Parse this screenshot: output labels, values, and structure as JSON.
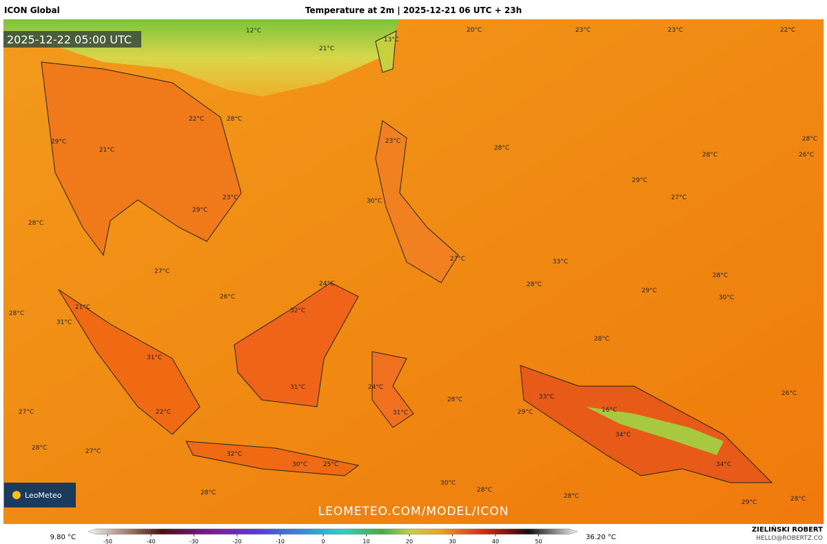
{
  "header": {
    "model": "ICON Global",
    "title": "Temperature at 2m | 2025-12-21 06 UTC + 23h",
    "valid_time": "2025-12-22 05:00 UTC"
  },
  "map": {
    "labels": [
      "12°C",
      "21°C",
      "13°C",
      "20°C",
      "23°C",
      "23°C",
      "22°C",
      "22°C",
      "28°C",
      "29°C",
      "21°C",
      "23°C",
      "28°C",
      "28°C",
      "26°C",
      "28°C",
      "29°C",
      "23°C",
      "30°C",
      "27°C",
      "28°C",
      "29°C",
      "27°C",
      "33°C",
      "27°C",
      "28°C",
      "28°C",
      "29°C",
      "30°C",
      "26°C",
      "24°C",
      "21°C",
      "28°C",
      "31°C",
      "32°C",
      "28°C",
      "31°C",
      "24°C",
      "31°C",
      "33°C",
      "28°C",
      "16°C",
      "26°C",
      "27°C",
      "22°C",
      "31°C",
      "29°C",
      "34°C",
      "28°C",
      "27°C",
      "32°C",
      "30°C",
      "25°C",
      "34°C",
      "30°C",
      "28°C",
      "28°C",
      "28°C",
      "28°C",
      "29°C"
    ],
    "brand": "LeoMeteo",
    "url": "LEOMETEO.COM/MODEL/ICON"
  },
  "colorbar": {
    "min_label": "9.80 °C",
    "max_label": "36.20 °C",
    "ticks": [
      -50,
      -40,
      -30,
      -20,
      -10,
      0,
      10,
      20,
      30,
      40,
      50
    ]
  },
  "footer": {
    "author": "ZIELIŃSKI ROBERT",
    "email": "HELLO@ROBERTZ.CO"
  }
}
